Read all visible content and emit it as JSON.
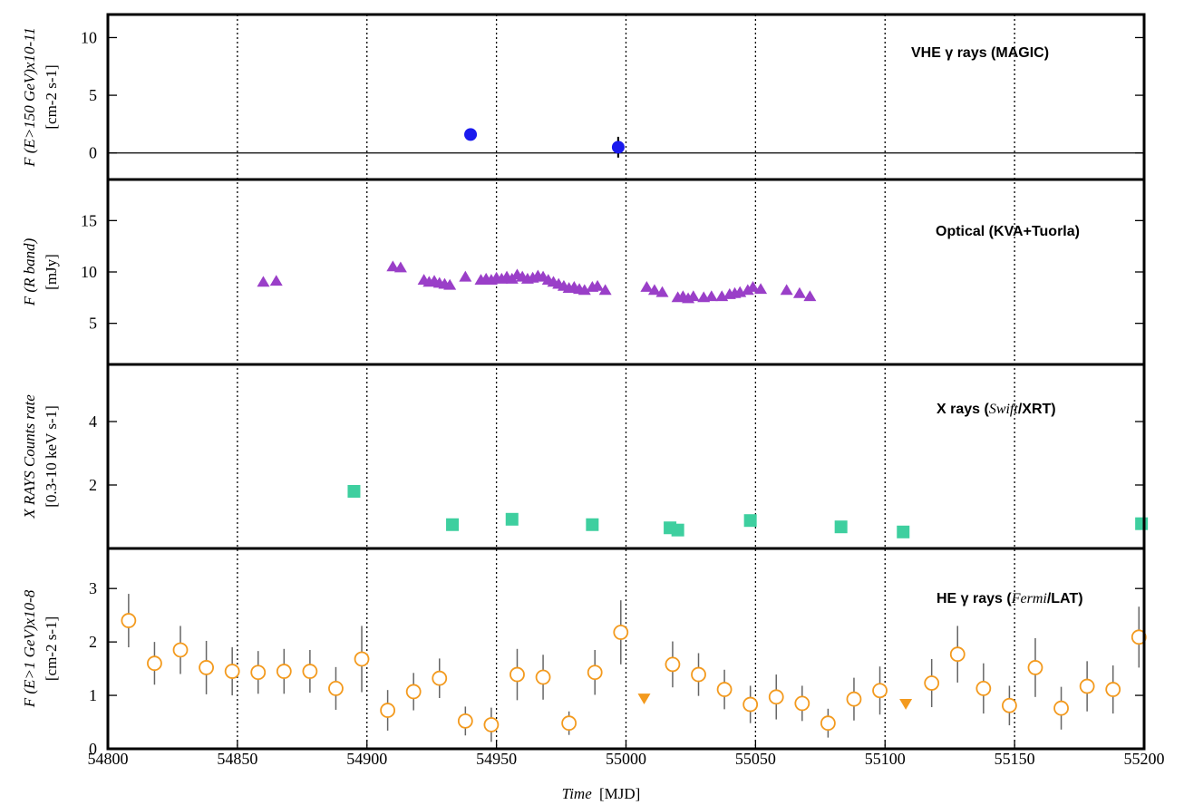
{
  "chart_data": {
    "type": "scatter",
    "xlabel_italic": "Time",
    "xlabel_unit": "[MJD]",
    "xlim": [
      54800,
      55200
    ],
    "xticks": [
      54800,
      54850,
      54900,
      54950,
      55000,
      55050,
      55100,
      55150,
      55200
    ],
    "vertical_guides": [
      54850,
      54900,
      54950,
      55000,
      55050,
      55100,
      55150
    ],
    "grid": "vertical dotted lines",
    "panels": [
      {
        "id": "vhe",
        "label_parts": [
          "VHE γ rays (MAGIC)"
        ],
        "ylabel_line1": "F (E>150 GeV)x10-11",
        "ylabel_line2": "[cm-2 s-1]",
        "ylim": [
          -2.3,
          12
        ],
        "yticks": [
          0,
          5,
          10
        ],
        "zero_line": true,
        "series": [
          {
            "marker": "circle-filled",
            "color": "#1a1aee",
            "points": [
              {
                "x": 54940,
                "y": 1.6,
                "err": 0
              },
              {
                "x": 54997,
                "y": 0.5,
                "err": 0.9,
                "xerr": 2
              }
            ]
          }
        ]
      },
      {
        "id": "optical",
        "label_parts": [
          "Optical (KVA+Tuorla)"
        ],
        "ylabel_line1": "F (R band)",
        "ylabel_line2": "[mJy]",
        "ylim": [
          1,
          19
        ],
        "yticks": [
          5,
          10,
          15
        ],
        "series": [
          {
            "marker": "triangle-up",
            "color": "#9a3fc8",
            "points": [
              {
                "x": 54860,
                "y": 9.0
              },
              {
                "x": 54865,
                "y": 9.1
              },
              {
                "x": 54910,
                "y": 10.5
              },
              {
                "x": 54913,
                "y": 10.4
              },
              {
                "x": 54922,
                "y": 9.2
              },
              {
                "x": 54924,
                "y": 9.0
              },
              {
                "x": 54926,
                "y": 9.1
              },
              {
                "x": 54928,
                "y": 8.9
              },
              {
                "x": 54930,
                "y": 8.8
              },
              {
                "x": 54932,
                "y": 8.7
              },
              {
                "x": 54938,
                "y": 9.5
              },
              {
                "x": 54944,
                "y": 9.2
              },
              {
                "x": 54946,
                "y": 9.3
              },
              {
                "x": 54948,
                "y": 9.2
              },
              {
                "x": 54950,
                "y": 9.4
              },
              {
                "x": 54952,
                "y": 9.3
              },
              {
                "x": 54954,
                "y": 9.5
              },
              {
                "x": 54956,
                "y": 9.3
              },
              {
                "x": 54958,
                "y": 9.7
              },
              {
                "x": 54960,
                "y": 9.5
              },
              {
                "x": 54962,
                "y": 9.3
              },
              {
                "x": 54964,
                "y": 9.4
              },
              {
                "x": 54966,
                "y": 9.6
              },
              {
                "x": 54968,
                "y": 9.5
              },
              {
                "x": 54970,
                "y": 9.2
              },
              {
                "x": 54972,
                "y": 9.0
              },
              {
                "x": 54974,
                "y": 8.8
              },
              {
                "x": 54976,
                "y": 8.6
              },
              {
                "x": 54978,
                "y": 8.4
              },
              {
                "x": 54980,
                "y": 8.5
              },
              {
                "x": 54982,
                "y": 8.3
              },
              {
                "x": 54984,
                "y": 8.2
              },
              {
                "x": 54987,
                "y": 8.5
              },
              {
                "x": 54989,
                "y": 8.6
              },
              {
                "x": 54992,
                "y": 8.2
              },
              {
                "x": 55008,
                "y": 8.5
              },
              {
                "x": 55011,
                "y": 8.2
              },
              {
                "x": 55014,
                "y": 8.0
              },
              {
                "x": 55020,
                "y": 7.5
              },
              {
                "x": 55022,
                "y": 7.6
              },
              {
                "x": 55024,
                "y": 7.4
              },
              {
                "x": 55026,
                "y": 7.6
              },
              {
                "x": 55030,
                "y": 7.5
              },
              {
                "x": 55033,
                "y": 7.6
              },
              {
                "x": 55037,
                "y": 7.6
              },
              {
                "x": 55040,
                "y": 7.8
              },
              {
                "x": 55042,
                "y": 7.9
              },
              {
                "x": 55044,
                "y": 8.0
              },
              {
                "x": 55047,
                "y": 8.2
              },
              {
                "x": 55049,
                "y": 8.5
              },
              {
                "x": 55052,
                "y": 8.3
              },
              {
                "x": 55062,
                "y": 8.2
              },
              {
                "x": 55067,
                "y": 7.9
              },
              {
                "x": 55071,
                "y": 7.6
              }
            ]
          }
        ]
      },
      {
        "id": "xray",
        "label_parts": [
          "X rays (",
          "Swift",
          "/XRT)"
        ],
        "ylabel_line1": "X RAYS Counts rate",
        "ylabel_line2": "[0.3-10 keV s-1]",
        "ylim": [
          0,
          5.8
        ],
        "yticks": [
          2,
          4
        ],
        "series": [
          {
            "marker": "square",
            "color": "#3ecf9f",
            "points": [
              {
                "x": 54895,
                "y": 1.8
              },
              {
                "x": 54933,
                "y": 0.75
              },
              {
                "x": 54956,
                "y": 0.92
              },
              {
                "x": 54987,
                "y": 0.75
              },
              {
                "x": 55017,
                "y": 0.65
              },
              {
                "x": 55020,
                "y": 0.58
              },
              {
                "x": 55048,
                "y": 0.88
              },
              {
                "x": 55083,
                "y": 0.68
              },
              {
                "x": 55107,
                "y": 0.52
              },
              {
                "x": 55199,
                "y": 0.78
              }
            ]
          }
        ]
      },
      {
        "id": "he",
        "label_parts": [
          "HE γ rays (",
          "Fermi",
          "/LAT)"
        ],
        "ylabel_line1": "F (E>1 GeV)x10-8",
        "ylabel_line2": "[cm-2 s-1]",
        "ylim": [
          0,
          3.75
        ],
        "yticks": [
          0,
          1,
          2,
          3
        ],
        "series": [
          {
            "marker": "circle-open",
            "color": "#f39a1e",
            "points": [
              {
                "x": 54808,
                "y": 2.4,
                "err": 0.5
              },
              {
                "x": 54818,
                "y": 1.6,
                "err": 0.4
              },
              {
                "x": 54828,
                "y": 1.85,
                "err": 0.45
              },
              {
                "x": 54838,
                "y": 1.52,
                "err": 0.5
              },
              {
                "x": 54848,
                "y": 1.45,
                "err": 0.45
              },
              {
                "x": 54858,
                "y": 1.43,
                "err": 0.4
              },
              {
                "x": 54868,
                "y": 1.45,
                "err": 0.42
              },
              {
                "x": 54878,
                "y": 1.45,
                "err": 0.4
              },
              {
                "x": 54888,
                "y": 1.13,
                "err": 0.4
              },
              {
                "x": 54898,
                "y": 1.68,
                "err": 0.62
              },
              {
                "x": 54908,
                "y": 0.72,
                "err": 0.38
              },
              {
                "x": 54918,
                "y": 1.07,
                "err": 0.35
              },
              {
                "x": 54928,
                "y": 1.32,
                "err": 0.37
              },
              {
                "x": 54938,
                "y": 0.52,
                "err": 0.27
              },
              {
                "x": 54948,
                "y": 0.45,
                "err": 0.32
              },
              {
                "x": 54958,
                "y": 1.39,
                "err": 0.48
              },
              {
                "x": 54968,
                "y": 1.34,
                "err": 0.42
              },
              {
                "x": 54978,
                "y": 0.48,
                "err": 0.22
              },
              {
                "x": 54988,
                "y": 1.43,
                "err": 0.42
              },
              {
                "x": 54998,
                "y": 2.18,
                "err": 0.6
              },
              {
                "x": 55018,
                "y": 1.58,
                "err": 0.43
              },
              {
                "x": 55028,
                "y": 1.39,
                "err": 0.4
              },
              {
                "x": 55038,
                "y": 1.11,
                "err": 0.37
              },
              {
                "x": 55048,
                "y": 0.83,
                "err": 0.35
              },
              {
                "x": 55058,
                "y": 0.97,
                "err": 0.42
              },
              {
                "x": 55068,
                "y": 0.85,
                "err": 0.33
              },
              {
                "x": 55078,
                "y": 0.48,
                "err": 0.27
              },
              {
                "x": 55088,
                "y": 0.93,
                "err": 0.4
              },
              {
                "x": 55098,
                "y": 1.09,
                "err": 0.45
              },
              {
                "x": 55118,
                "y": 1.23,
                "err": 0.45
              },
              {
                "x": 55128,
                "y": 1.77,
                "err": 0.53
              },
              {
                "x": 55138,
                "y": 1.13,
                "err": 0.47
              },
              {
                "x": 55148,
                "y": 0.81,
                "err": 0.37
              },
              {
                "x": 55158,
                "y": 1.52,
                "err": 0.55
              },
              {
                "x": 55168,
                "y": 0.76,
                "err": 0.4
              },
              {
                "x": 55178,
                "y": 1.17,
                "err": 0.47
              },
              {
                "x": 55188,
                "y": 1.11,
                "err": 0.45
              },
              {
                "x": 55198,
                "y": 2.09,
                "err": 0.57
              }
            ]
          },
          {
            "marker": "triangle-down",
            "color": "#f39a1e",
            "points": [
              {
                "x": 55007,
                "y": 0.95
              },
              {
                "x": 55108,
                "y": 0.85
              }
            ]
          }
        ]
      }
    ]
  }
}
